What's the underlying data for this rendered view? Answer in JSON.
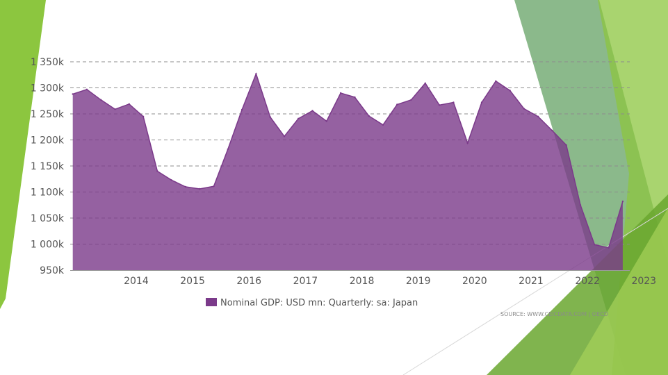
{
  "chart_data": {
    "type": "area",
    "title": "",
    "xlabel": "",
    "ylabel": "",
    "ylim": [
      950000,
      1350000
    ],
    "yticks": [
      950000,
      1000000,
      1050000,
      1100000,
      1150000,
      1200000,
      1250000,
      1300000,
      1350000
    ],
    "ytick_labels": [
      "950k",
      "1 000k",
      "1 050k",
      "1 100k",
      "1 150k",
      "1 200k",
      "1 250k",
      "1 300k",
      "1 350k"
    ],
    "xticks": [
      2014,
      2015,
      2016,
      2017,
      2018,
      2019,
      2020,
      2021,
      2022,
      2023
    ],
    "xtick_labels": [
      "2014",
      "2015",
      "2016",
      "2017",
      "2018",
      "2019",
      "2020",
      "2021",
      "2022",
      "2023"
    ],
    "xlim": [
      2013.33,
      2023.25
    ],
    "grid": true,
    "legend_position": "bottom",
    "series": [
      {
        "name": "Nominal GDP: USD mn: Quarterly: sa: Japan",
        "color": "#7b3a8a",
        "points": [
          {
            "x": "2013-Q2",
            "y": 1288000
          },
          {
            "x": "2013-Q3",
            "y": 1297000
          },
          {
            "x": "2013-Q4",
            "y": 1277000
          },
          {
            "x": "2014-Q1",
            "y": 1259000
          },
          {
            "x": "2014-Q2",
            "y": 1269000
          },
          {
            "x": "2014-Q3",
            "y": 1245000
          },
          {
            "x": "2014-Q4",
            "y": 1140000
          },
          {
            "x": "2015-Q1",
            "y": 1123000
          },
          {
            "x": "2015-Q2",
            "y": 1110000
          },
          {
            "x": "2015-Q3",
            "y": 1106000
          },
          {
            "x": "2015-Q4",
            "y": 1111000
          },
          {
            "x": "2016-Q1",
            "y": 1182000
          },
          {
            "x": "2016-Q2",
            "y": 1258000
          },
          {
            "x": "2016-Q3",
            "y": 1327000
          },
          {
            "x": "2016-Q4",
            "y": 1244000
          },
          {
            "x": "2017-Q1",
            "y": 1207000
          },
          {
            "x": "2017-Q2",
            "y": 1241000
          },
          {
            "x": "2017-Q3",
            "y": 1256000
          },
          {
            "x": "2017-Q4",
            "y": 1236000
          },
          {
            "x": "2018-Q1",
            "y": 1290000
          },
          {
            "x": "2018-Q2",
            "y": 1282000
          },
          {
            "x": "2018-Q3",
            "y": 1246000
          },
          {
            "x": "2018-Q4",
            "y": 1229000
          },
          {
            "x": "2019-Q1",
            "y": 1268000
          },
          {
            "x": "2019-Q2",
            "y": 1277000
          },
          {
            "x": "2019-Q3",
            "y": 1309000
          },
          {
            "x": "2019-Q4",
            "y": 1267000
          },
          {
            "x": "2020-Q1",
            "y": 1272000
          },
          {
            "x": "2020-Q2",
            "y": 1194000
          },
          {
            "x": "2020-Q3",
            "y": 1272000
          },
          {
            "x": "2020-Q4",
            "y": 1313000
          },
          {
            "x": "2021-Q1",
            "y": 1295000
          },
          {
            "x": "2021-Q2",
            "y": 1260000
          },
          {
            "x": "2021-Q3",
            "y": 1245000
          },
          {
            "x": "2021-Q4",
            "y": 1218000
          },
          {
            "x": "2022-Q1",
            "y": 1190000
          },
          {
            "x": "2022-Q2",
            "y": 1075000
          },
          {
            "x": "2022-Q3",
            "y": 999000
          },
          {
            "x": "2022-Q4",
            "y": 993000
          },
          {
            "x": "2023-Q1",
            "y": 1082000
          }
        ]
      }
    ]
  },
  "source_text": "SOURCE: WWW.CEICDATA.COM | OECD",
  "colors": {
    "decor_green_dark": "#3d8b3d",
    "decor_green_light": "#8cc63f"
  }
}
